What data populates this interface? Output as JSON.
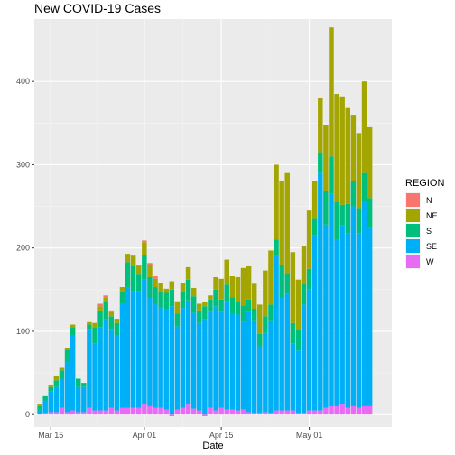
{
  "chart_data": {
    "type": "bar",
    "stacked": true,
    "title": "New COVID-19 Cases",
    "xlabel": "Date",
    "ylabel": "",
    "ylim": [
      -15,
      475
    ],
    "yticks": [
      0,
      100,
      200,
      300,
      400
    ],
    "x_start": "2020-03-13",
    "xlim": [
      "2020-03-12",
      "2020-05-16"
    ],
    "xticks": [
      {
        "label": "Mar 15",
        "date": "2020-03-15"
      },
      {
        "label": "Apr 01",
        "date": "2020-04-01"
      },
      {
        "label": "Apr 15",
        "date": "2020-04-15"
      },
      {
        "label": "May 01",
        "date": "2020-05-01"
      }
    ],
    "grid": true,
    "legend": {
      "title": "REGION",
      "position": "right"
    },
    "series": [
      {
        "name": "N",
        "color": "#F8766D",
        "values": [
          0,
          0,
          0,
          0,
          0,
          0,
          0,
          0,
          0,
          0,
          0,
          3,
          3,
          2,
          0,
          0,
          0,
          2,
          2,
          2,
          2,
          3,
          0,
          0,
          0,
          0,
          0,
          0,
          0,
          0,
          0,
          0,
          0,
          0,
          0,
          0,
          0,
          0,
          0,
          0,
          0,
          0,
          0,
          0,
          0,
          0,
          0,
          0,
          0,
          0,
          0,
          0,
          0,
          0,
          0,
          0,
          0,
          0,
          0,
          0,
          0
        ]
      },
      {
        "name": "NE",
        "color": "#A3A500",
        "values": [
          2,
          0,
          3,
          5,
          3,
          2,
          3,
          0,
          0,
          3,
          5,
          5,
          5,
          5,
          5,
          5,
          10,
          12,
          10,
          15,
          15,
          10,
          10,
          5,
          10,
          15,
          10,
          15,
          10,
          8,
          5,
          5,
          15,
          25,
          30,
          25,
          30,
          45,
          40,
          30,
          35,
          55,
          65,
          90,
          100,
          120,
          85,
          60,
          45,
          70,
          45,
          65,
          80,
          155,
          130,
          130,
          115,
          80,
          90,
          110,
          85
        ]
      },
      {
        "name": "S",
        "color": "#00BF7D",
        "values": [
          5,
          5,
          5,
          8,
          10,
          15,
          10,
          10,
          5,
          5,
          20,
          20,
          20,
          15,
          15,
          15,
          30,
          30,
          20,
          30,
          25,
          20,
          20,
          20,
          20,
          15,
          20,
          25,
          20,
          15,
          15,
          15,
          20,
          15,
          20,
          20,
          15,
          20,
          15,
          15,
          15,
          20,
          20,
          20,
          40,
          25,
          25,
          25,
          25,
          25,
          20,
          25,
          40,
          45,
          45,
          25,
          35,
          30,
          30,
          35,
          35
        ]
      },
      {
        "name": "SE",
        "color": "#00B0F6",
        "values": [
          5,
          15,
          25,
          30,
          35,
          60,
          90,
          30,
          30,
          95,
          80,
          100,
          110,
          95,
          90,
          125,
          145,
          140,
          140,
          150,
          130,
          125,
          120,
          120,
          130,
          100,
          120,
          125,
          115,
          105,
          115,
          115,
          125,
          115,
          130,
          115,
          115,
          105,
          120,
          110,
          80,
          95,
          110,
          185,
          135,
          140,
          80,
          75,
          130,
          145,
          210,
          285,
          220,
          255,
          200,
          215,
          210,
          240,
          210,
          245,
          215
        ]
      },
      {
        "name": "W",
        "color": "#E76BF3",
        "values": [
          0,
          2,
          3,
          3,
          8,
          3,
          5,
          3,
          3,
          8,
          5,
          5,
          5,
          8,
          5,
          8,
          8,
          8,
          8,
          12,
          10,
          8,
          8,
          6,
          -2,
          6,
          8,
          12,
          7,
          5,
          -2,
          8,
          5,
          8,
          6,
          6,
          5,
          6,
          3,
          2,
          2,
          3,
          2,
          5,
          5,
          5,
          5,
          2,
          2,
          5,
          5,
          5,
          8,
          10,
          10,
          12,
          8,
          10,
          8,
          10,
          10
        ]
      }
    ]
  }
}
